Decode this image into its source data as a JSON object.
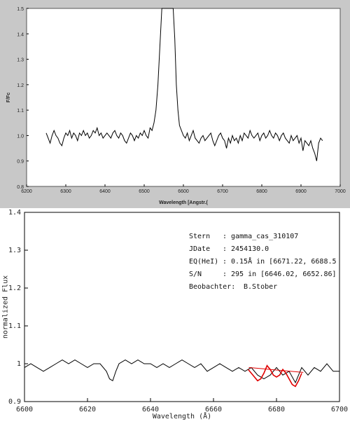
{
  "chart_data": [
    {
      "type": "line",
      "xlabel": "Wavelength [Angstr.(",
      "ylabel": "F/Fc",
      "xlim": [
        6200,
        7000
      ],
      "ylim": [
        0.8,
        1.5
      ],
      "xticks": [
        "6200",
        "6300",
        "6400",
        "6500",
        "6600",
        "6700",
        "6800",
        "6900",
        "7000"
      ],
      "yticks": [
        "0.8",
        "0.9",
        "1.0",
        "1.1",
        "1.2",
        "1.3",
        "1.4",
        "1.5"
      ],
      "grid": false,
      "series": [
        {
          "x": [
            6250,
            6255,
            6260,
            6265,
            6270,
            6275,
            6280,
            6285,
            6290,
            6295,
            6300,
            6305,
            6310,
            6315,
            6320,
            6325,
            6330,
            6335,
            6340,
            6345,
            6350,
            6355,
            6360,
            6365,
            6370,
            6375,
            6380,
            6385,
            6390,
            6395,
            6400,
            6405,
            6410,
            6415,
            6420,
            6425,
            6430,
            6435,
            6440,
            6445,
            6450,
            6455,
            6460,
            6465,
            6470,
            6475,
            6480,
            6485,
            6490,
            6495,
            6500,
            6505,
            6510,
            6515,
            6520,
            6525,
            6530,
            6535,
            6540,
            6545,
            6550,
            6553,
            6556,
            6559,
            6562,
            6565,
            6568,
            6571,
            6574,
            6578,
            6582,
            6586,
            6590,
            6595,
            6600,
            6605,
            6610,
            6615,
            6620,
            6625,
            6630,
            6635,
            6640,
            6645,
            6650,
            6655,
            6660,
            6665,
            6670,
            6675,
            6680,
            6685,
            6690,
            6695,
            6700,
            6705,
            6710,
            6715,
            6720,
            6725,
            6730,
            6735,
            6740,
            6745,
            6750,
            6755,
            6760,
            6765,
            6770,
            6775,
            6780,
            6785,
            6790,
            6795,
            6800,
            6805,
            6810,
            6815,
            6820,
            6825,
            6830,
            6835,
            6840,
            6845,
            6850,
            6855,
            6860,
            6865,
            6870,
            6875,
            6880,
            6885,
            6890,
            6895,
            6900,
            6905,
            6910,
            6915,
            6920,
            6925,
            6930,
            6935,
            6940,
            6945,
            6950,
            6955
          ],
          "y": [
            1.01,
            0.99,
            0.97,
            1.0,
            1.02,
            1.0,
            0.99,
            0.97,
            0.96,
            0.99,
            1.01,
            1.0,
            1.02,
            0.99,
            1.01,
            1.0,
            0.98,
            1.01,
            1.0,
            1.02,
            1.0,
            1.01,
            0.99,
            1.0,
            1.02,
            1.01,
            1.03,
            1.0,
            1.01,
            0.99,
            1.0,
            1.01,
            1.0,
            0.99,
            1.01,
            1.02,
            1.0,
            0.99,
            1.01,
            1.0,
            0.98,
            0.97,
            0.99,
            1.01,
            1.0,
            0.98,
            1.0,
            0.99,
            1.01,
            1.0,
            1.02,
            1.0,
            0.99,
            1.03,
            1.02,
            1.05,
            1.1,
            1.2,
            1.35,
            1.5,
            1.5,
            1.5,
            1.5,
            1.5,
            1.5,
            1.5,
            1.5,
            1.5,
            1.5,
            1.38,
            1.2,
            1.1,
            1.04,
            1.02,
            1.0,
            0.99,
            1.01,
            0.98,
            1.0,
            1.02,
            0.99,
            0.98,
            0.97,
            0.99,
            1.0,
            0.98,
            0.99,
            1.0,
            1.01,
            0.98,
            0.96,
            0.98,
            1.0,
            1.01,
            0.99,
            0.98,
            0.95,
            0.99,
            0.97,
            1.0,
            0.98,
            0.99,
            0.97,
            1.0,
            0.98,
            1.01,
            1.0,
            0.99,
            1.02,
            1.0,
            0.99,
            1.0,
            1.01,
            0.98,
            1.0,
            1.01,
            0.99,
            1.0,
            1.02,
            1.0,
            0.99,
            1.01,
            1.0,
            0.98,
            1.0,
            1.01,
            0.99,
            0.98,
            0.97,
            1.0,
            0.98,
            0.99,
            1.0,
            0.97,
            0.99,
            0.94,
            0.98,
            0.97,
            0.96,
            0.98,
            0.95,
            0.93,
            0.9,
            0.97,
            0.99,
            0.98
          ]
        }
      ]
    },
    {
      "type": "line",
      "xlabel": "Wavelength (Å)",
      "ylabel": "normalized Flux",
      "xlim": [
        6600,
        6700
      ],
      "ylim": [
        0.9,
        1.4
      ],
      "xticks": [
        "6600",
        "6620",
        "6640",
        "6660",
        "6680",
        "6700"
      ],
      "yticks": [
        "0.9",
        "1",
        "1.1",
        "1.2",
        "1.3",
        "1.4"
      ],
      "grid": false,
      "series": [
        {
          "x": [
            6600,
            6602,
            6604,
            6606,
            6608,
            6610,
            6612,
            6614,
            6616,
            6618,
            6620,
            6622,
            6624,
            6626,
            6627,
            6628,
            6629,
            6630,
            6632,
            6634,
            6636,
            6638,
            6640,
            6642,
            6644,
            6646,
            6648,
            6650,
            6652,
            6654,
            6656,
            6658,
            6660,
            6662,
            6664,
            6666,
            6668,
            6670,
            6672,
            6674,
            6676,
            6678,
            6680,
            6682,
            6684,
            6686,
            6688,
            6690,
            6692,
            6694,
            6696,
            6698,
            6700
          ],
          "y": [
            0.99,
            1.0,
            0.99,
            0.98,
            0.99,
            1.0,
            1.01,
            1.0,
            1.01,
            1.0,
            0.99,
            1.0,
            1.0,
            0.98,
            0.96,
            0.955,
            0.98,
            1.0,
            1.01,
            1.0,
            1.01,
            1.0,
            1.0,
            0.99,
            1.0,
            0.99,
            1.0,
            1.01,
            1.0,
            0.99,
            1.0,
            0.98,
            0.99,
            1.0,
            0.99,
            0.98,
            0.99,
            0.98,
            0.99,
            0.97,
            0.96,
            0.97,
            0.99,
            0.97,
            0.98,
            0.95,
            0.99,
            0.97,
            0.99,
            0.98,
            1.0,
            0.98,
            0.98
          ]
        },
        {
          "color": "#e00000",
          "x": [
            6671,
            6672,
            6673,
            6674,
            6675,
            6676,
            6677,
            6678,
            6679,
            6680,
            6681,
            6682,
            6683,
            6684,
            6685,
            6686,
            6687,
            6688
          ],
          "y": [
            0.985,
            0.975,
            0.965,
            0.955,
            0.96,
            0.975,
            0.995,
            0.985,
            0.97,
            0.965,
            0.97,
            0.985,
            0.975,
            0.96,
            0.945,
            0.94,
            0.955,
            0.975
          ]
        },
        {
          "color": "#e00000",
          "x": [
            6671.22,
            6688.5
          ],
          "y": [
            0.99,
            0.977
          ]
        }
      ],
      "annotations": [
        {
          "key": "Stern",
          "sep": ":",
          "value": "gamma_cas_310107"
        },
        {
          "key": "JDate",
          "sep": ":",
          "value": "2454130.0"
        },
        {
          "key": "EQ(HeI)",
          "sep": ":",
          "value": "0.15Å in [6671.22, 6688.5"
        },
        {
          "key": "S/N",
          "sep": ":",
          "value": "295 in [6646.02, 6652.86]"
        },
        {
          "key": "Beobachter:",
          "sep": "",
          "value": "B.Stober"
        }
      ]
    }
  ]
}
